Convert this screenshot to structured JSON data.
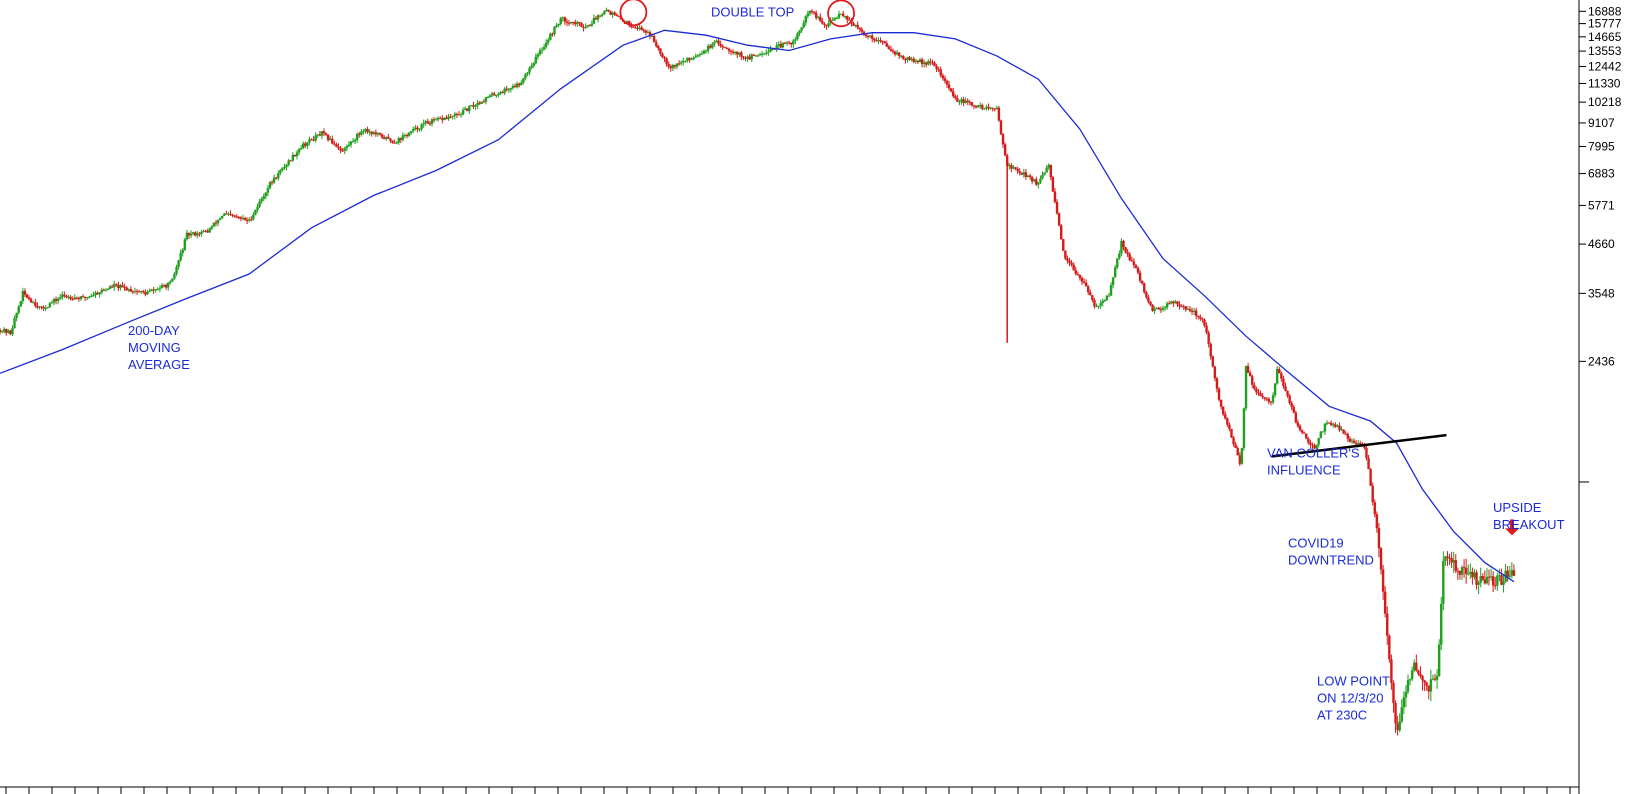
{
  "chart_data": {
    "type": "candlestick",
    "y_scale": "log",
    "y_tick_labels": [
      16888,
      15777,
      14665,
      13553,
      12442,
      11330,
      10218,
      9107,
      7995,
      6883,
      5771,
      4660,
      3548,
      2436
    ],
    "ylim": [
      230,
      17200
    ],
    "grid": false,
    "legend": "none",
    "colors": {
      "up": "#1fa01f",
      "down": "#d61a1a",
      "moving_average": "#1a2bd6",
      "annotation_text": "#1a2bd6",
      "circle": "#e11a1a",
      "arrow": "#e11a1a",
      "trendline": "#000000"
    },
    "price_path": [
      [
        0,
        2900
      ],
      [
        10,
        2850
      ],
      [
        22,
        3550
      ],
      [
        40,
        3250
      ],
      [
        60,
        3500
      ],
      [
        80,
        3450
      ],
      [
        110,
        3700
      ],
      [
        140,
        3550
      ],
      [
        165,
        3750
      ],
      [
        180,
        4900
      ],
      [
        200,
        5000
      ],
      [
        215,
        5500
      ],
      [
        240,
        5300
      ],
      [
        260,
        6500
      ],
      [
        290,
        8000
      ],
      [
        310,
        8600
      ],
      [
        330,
        7800
      ],
      [
        350,
        8800
      ],
      [
        380,
        8200
      ],
      [
        410,
        9100
      ],
      [
        440,
        9500
      ],
      [
        470,
        10500
      ],
      [
        500,
        11300
      ],
      [
        520,
        13500
      ],
      [
        540,
        16200
      ],
      [
        565,
        15500
      ],
      [
        583,
        17100
      ],
      [
        600,
        16000
      ],
      [
        625,
        15000
      ],
      [
        645,
        12400
      ],
      [
        665,
        13000
      ],
      [
        690,
        14200
      ],
      [
        720,
        13000
      ],
      [
        745,
        13800
      ],
      [
        765,
        14300
      ],
      [
        780,
        17000
      ],
      [
        795,
        15500
      ],
      [
        810,
        16800
      ],
      [
        830,
        15000
      ],
      [
        850,
        14200
      ],
      [
        870,
        13000
      ],
      [
        900,
        12600
      ],
      [
        920,
        10400
      ],
      [
        940,
        10000
      ],
      [
        960,
        9800
      ],
      [
        970,
        7200
      ],
      [
        985,
        6900
      ],
      [
        1000,
        6500
      ],
      [
        1010,
        7200
      ],
      [
        1025,
        4300
      ],
      [
        1040,
        3900
      ],
      [
        1055,
        3300
      ],
      [
        1068,
        3500
      ],
      [
        1080,
        4700
      ],
      [
        1095,
        4000
      ],
      [
        1110,
        3200
      ],
      [
        1130,
        3400
      ],
      [
        1150,
        3200
      ],
      [
        1160,
        3000
      ],
      [
        1175,
        1900
      ],
      [
        1185,
        1650
      ],
      [
        1195,
        1350
      ],
      [
        1200,
        2350
      ],
      [
        1210,
        2050
      ],
      [
        1225,
        1950
      ],
      [
        1230,
        2350
      ],
      [
        1250,
        1700
      ],
      [
        1265,
        1500
      ],
      [
        1278,
        1750
      ],
      [
        1290,
        1680
      ],
      [
        1300,
        1580
      ],
      [
        1315,
        1500
      ],
      [
        1325,
        1000
      ],
      [
        1335,
        560
      ],
      [
        1345,
        300
      ],
      [
        1352,
        380
      ],
      [
        1362,
        450
      ],
      [
        1375,
        400
      ],
      [
        1385,
        440
      ],
      [
        1390,
        820
      ],
      [
        1410,
        760
      ],
      [
        1425,
        720
      ],
      [
        1440,
        720
      ],
      [
        1450,
        740
      ],
      [
        1458,
        770
      ]
    ],
    "moving_average_path": [
      [
        0,
        2280
      ],
      [
        60,
        2600
      ],
      [
        120,
        3000
      ],
      [
        180,
        3450
      ],
      [
        240,
        3950
      ],
      [
        300,
        5100
      ],
      [
        360,
        6100
      ],
      [
        420,
        7000
      ],
      [
        480,
        8300
      ],
      [
        540,
        11000
      ],
      [
        600,
        14000
      ],
      [
        640,
        15200
      ],
      [
        680,
        14800
      ],
      [
        720,
        14000
      ],
      [
        760,
        13600
      ],
      [
        800,
        14500
      ],
      [
        840,
        15000
      ],
      [
        880,
        15000
      ],
      [
        920,
        14500
      ],
      [
        960,
        13200
      ],
      [
        1000,
        11600
      ],
      [
        1040,
        8800
      ],
      [
        1080,
        6000
      ],
      [
        1120,
        4300
      ],
      [
        1160,
        3500
      ],
      [
        1200,
        2800
      ],
      [
        1240,
        2300
      ],
      [
        1280,
        1900
      ],
      [
        1320,
        1750
      ],
      [
        1345,
        1550
      ],
      [
        1370,
        1200
      ],
      [
        1400,
        950
      ],
      [
        1430,
        800
      ],
      [
        1458,
        720
      ]
    ],
    "annotations": [
      {
        "text": "DOUBLE TOP",
        "x": 711,
        "price": 16400
      },
      {
        "lines": [
          "200-DAY",
          "MOVING",
          "AVERAGE"
        ],
        "x": 128,
        "price": 2820
      },
      {
        "lines": [
          "VAN COLLER'S",
          "INFLUENCE"
        ],
        "x": 1267,
        "price": 1430
      },
      {
        "lines": [
          "UPSIDE",
          "BREAKOUT"
        ],
        "x": 1493,
        "price": 1060
      },
      {
        "lines": [
          "COVID19",
          "DOWNTREND"
        ],
        "x": 1288,
        "price": 870
      },
      {
        "lines": [
          "LOW POINT",
          "ON 12/3/20",
          "AT 230C"
        ],
        "x": 1317,
        "price": 405
      }
    ],
    "double_top_circles": [
      [
        610,
        16800
      ],
      [
        810,
        16700
      ]
    ],
    "trendline": [
      [
        1225,
        1440
      ],
      [
        1393,
        1620
      ]
    ],
    "breakout_arrow": {
      "x": 1512,
      "price": 930
    }
  }
}
